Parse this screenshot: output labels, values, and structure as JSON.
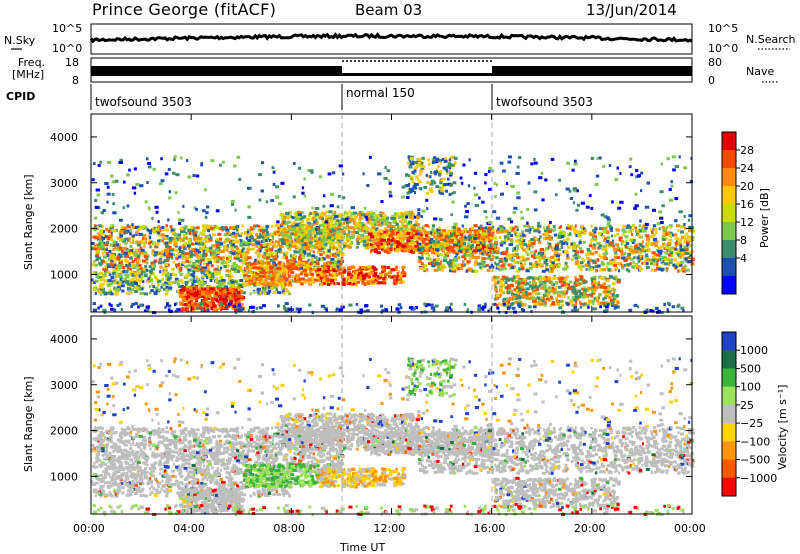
{
  "header": {
    "radar": "Prince George (fitACF)",
    "beam": "Beam 03",
    "date": "13/Jun/2014"
  },
  "noise_panel": {
    "left_label": "N.Sky",
    "right_label": "N.Search",
    "left_ticks": [
      "10^5",
      "10^0"
    ],
    "right_ticks": [
      "10^5",
      "10^0"
    ]
  },
  "freq_panel": {
    "left_label_1": "Freq.",
    "left_label_2": "[MHz]",
    "right_label": "Nave",
    "left_ticks": [
      "18",
      "8"
    ],
    "right_ticks": [
      "80",
      "0"
    ]
  },
  "cpid_panel": {
    "label": "CPID",
    "modes": [
      {
        "name": "twofsound 3503",
        "start": 0,
        "end": 10
      },
      {
        "name": "normal 150",
        "start": 10,
        "end": 16
      },
      {
        "name": "twofsound 3503",
        "start": 16,
        "end": 24
      }
    ]
  },
  "x_axis": {
    "label": "Time UT",
    "ticks": [
      "00:00",
      "04:00",
      "08:00",
      "12:00",
      "16:00",
      "20:00",
      "00:00"
    ],
    "range_hours": [
      0,
      24
    ]
  },
  "power_panel": {
    "ylabel": "Slant Range [km]",
    "yticks": [
      "1000",
      "2000",
      "3000",
      "4000"
    ],
    "cbar_label": "Power [dB]",
    "cbar_ticks": [
      "28",
      "24",
      "20",
      "16",
      "12",
      "8",
      "4"
    ],
    "cbar_colors": [
      "#e00000",
      "#ff4a00",
      "#ff8c00",
      "#ffc800",
      "#c8dc00",
      "#7fc850",
      "#3c8c6e",
      "#1e50b4",
      "#0000ff"
    ]
  },
  "velocity_panel": {
    "ylabel": "Slant Range [km]",
    "yticks": [
      "1000",
      "2000",
      "3000",
      "4000"
    ],
    "cbar_label": "Velocity [m s⁻¹]",
    "cbar_ticks": [
      "1000",
      "500",
      "100",
      "25",
      "−25",
      "−100",
      "−500",
      "−1000"
    ],
    "cbar_colors": [
      "#2040c8",
      "#1e6e4a",
      "#3cb43c",
      "#9be15a",
      "#bebebe",
      "#ffd200",
      "#ff9600",
      "#ff5a00",
      "#ff0000"
    ]
  },
  "chart_data": {
    "type": "heatmap",
    "title": "Prince George (fitACF)  Beam 03  13/Jun/2014",
    "xlabel": "Time UT",
    "ylabel": "Slant Range [km]",
    "xlim_hours": [
      0,
      24
    ],
    "ylim_km": [
      180,
      4500
    ],
    "colorbars": [
      {
        "label": "Power [dB]",
        "range": [
          0,
          30
        ]
      },
      {
        "label": "Velocity [m s⁻¹]",
        "range": [
          -1000,
          1000
        ]
      }
    ],
    "scatter_bands": [
      {
        "hours": [
          0,
          10
        ],
        "range_km": [
          1200,
          2100
        ],
        "dominant_power_db": 18
      },
      {
        "hours": [
          3.5,
          6
        ],
        "range_km": [
          300,
          800
        ],
        "dominant_power_db": 24
      },
      {
        "hours": [
          7.5,
          13
        ],
        "range_km": [
          1600,
          2400
        ],
        "dominant_power_db": 20
      },
      {
        "hours": [
          13,
          20
        ],
        "range_km": [
          1400,
          1900
        ],
        "dominant_power_db": 22
      },
      {
        "hours": [
          16,
          21
        ],
        "range_km": [
          400,
          1100
        ],
        "dominant_power_db": 16
      }
    ],
    "mode_change_hours": [
      10,
      16
    ]
  }
}
